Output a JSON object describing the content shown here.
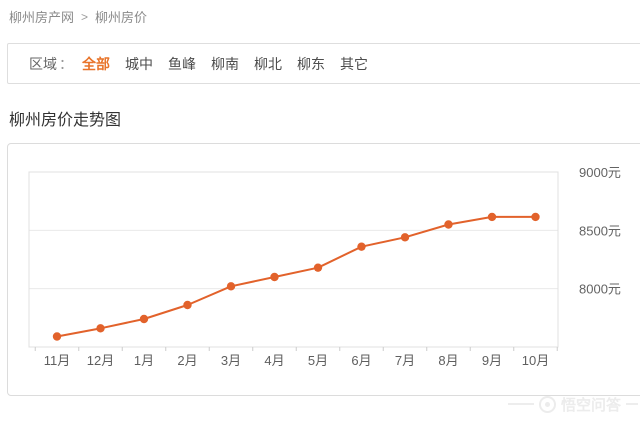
{
  "breadcrumb": {
    "items": [
      {
        "label": "柳州房产网"
      },
      {
        "label": "柳州房价"
      }
    ],
    "separator": ">"
  },
  "filter": {
    "label": "区域",
    "colon": "：",
    "active_color": "#e8742a",
    "options": [
      {
        "label": "全部",
        "active": true
      },
      {
        "label": "城中",
        "active": false
      },
      {
        "label": "鱼峰",
        "active": false
      },
      {
        "label": "柳南",
        "active": false
      },
      {
        "label": "柳北",
        "active": false
      },
      {
        "label": "柳东",
        "active": false
      },
      {
        "label": "其它",
        "active": false
      }
    ]
  },
  "section": {
    "title": "柳州房价走势图"
  },
  "chart_data": {
    "type": "line",
    "title": "柳州房价走势图",
    "categories": [
      "11月",
      "12月",
      "1月",
      "2月",
      "3月",
      "4月",
      "5月",
      "6月",
      "7月",
      "8月",
      "9月",
      "10月"
    ],
    "values": [
      7590,
      7660,
      7740,
      7860,
      8020,
      8100,
      8180,
      8360,
      8440,
      8550,
      8615,
      8615
    ],
    "unit": "元",
    "xlabel": "",
    "ylabel": "",
    "ylim": [
      7500,
      9000
    ],
    "y_ticks": [
      {
        "value": 9000,
        "label": "9000元"
      },
      {
        "value": 8500,
        "label": "8500元"
      },
      {
        "value": 8000,
        "label": "8000元"
      }
    ],
    "y_axis_position": "right",
    "grid": true,
    "legend_position": "none",
    "line_color": "#e2622b"
  },
  "watermark": {
    "text": "悟空问答",
    "icon": "wukong-logo"
  }
}
